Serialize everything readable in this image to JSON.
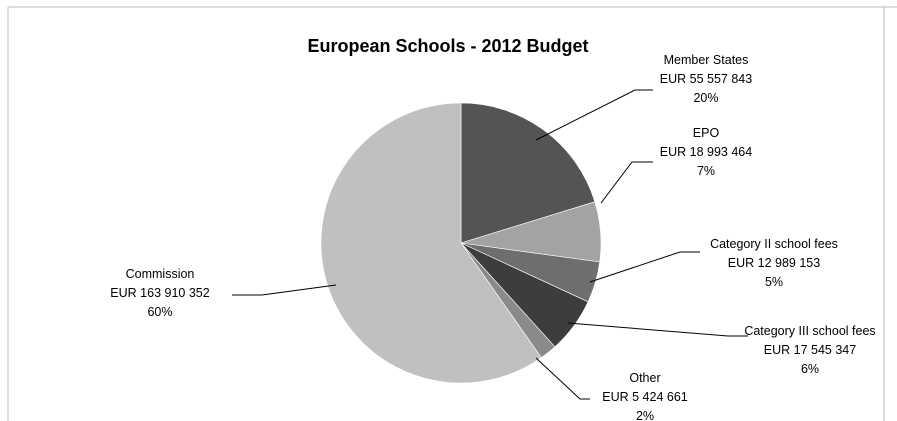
{
  "chart_data": {
    "type": "pie",
    "title": "European Schools - 2012 Budget",
    "categories": [
      "Member States",
      "EPO",
      "Category II school fees",
      "Category III school fees",
      "Other",
      "Commission"
    ],
    "values": [
      55557843,
      18993464,
      12989153,
      17545347,
      5424661,
      163910352
    ],
    "amount_labels": [
      "EUR 55 557 843",
      "EUR 18 993 464",
      "EUR 12 989 153",
      "EUR 17 545 347",
      "EUR 5 424 661",
      "EUR 163 910 352"
    ],
    "percent_labels": [
      "20%",
      "7%",
      "5%",
      "6%",
      "2%",
      "60%"
    ],
    "colors": [
      "#545454",
      "#a3a3a3",
      "#6e6e6e",
      "#3d3d3d",
      "#8a8a8a",
      "#c0c0c0"
    ],
    "start_angle": "12 o'clock",
    "direction": "clockwise",
    "legend": "none"
  }
}
